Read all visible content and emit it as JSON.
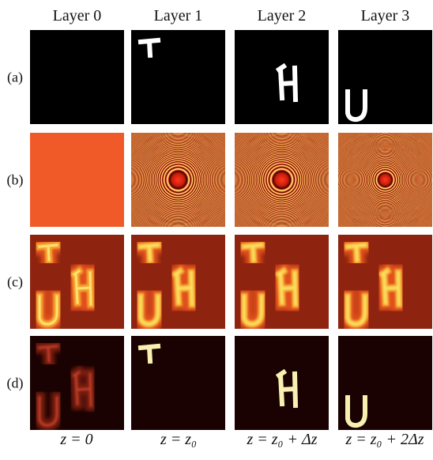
{
  "columns": [
    "Layer 0",
    "Layer 1",
    "Layer 2",
    "Layer 3"
  ],
  "rows": [
    "(a)",
    "(b)",
    "(c)",
    "(d)"
  ],
  "footer": [
    "z = 0",
    "z = z₀",
    "z = z₀ + Δz",
    "z = z₀ + 2Δz"
  ]
}
